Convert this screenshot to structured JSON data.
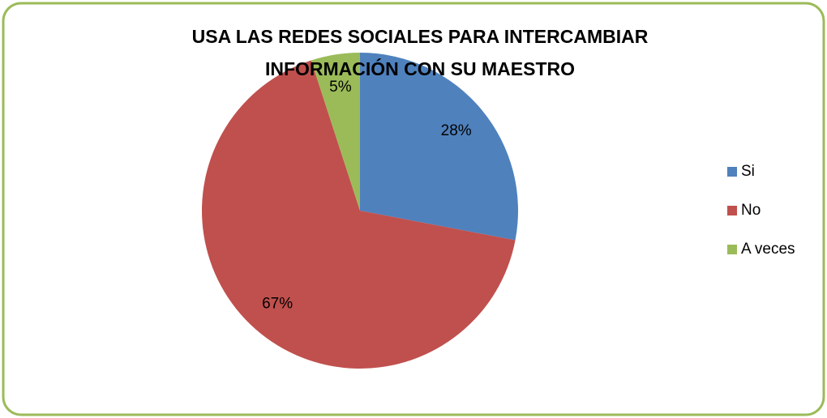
{
  "chart_data": {
    "type": "pie",
    "title": [
      "USA LAS REDES SOCIALES PARA INTERCAMBIAR",
      "INFORMACIÓN CON SU MAESTRO"
    ],
    "categories": [
      "Si",
      "No",
      "A veces"
    ],
    "values": [
      28,
      67,
      5
    ],
    "value_labels": [
      "28%",
      "67%",
      "5%"
    ],
    "colors": [
      "#4f81bd",
      "#c0504d",
      "#9bbb59"
    ],
    "legend": "right"
  }
}
